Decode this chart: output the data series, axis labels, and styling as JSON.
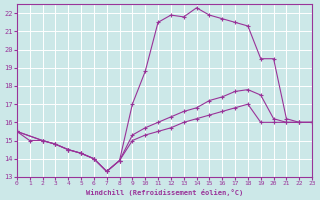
{
  "xlabel": "Windchill (Refroidissement éolien,°C)",
  "xlim": [
    0,
    23
  ],
  "ylim": [
    13,
    22.5
  ],
  "yticks": [
    13,
    14,
    15,
    16,
    17,
    18,
    19,
    20,
    21,
    22
  ],
  "xticks": [
    0,
    1,
    2,
    3,
    4,
    5,
    6,
    7,
    8,
    9,
    10,
    11,
    12,
    13,
    14,
    15,
    16,
    17,
    18,
    19,
    20,
    21,
    22,
    23
  ],
  "bg_color": "#cce8e8",
  "grid_color": "#ffffff",
  "line_color": "#993399",
  "curve1_x": [
    0,
    1,
    2,
    3,
    4,
    5,
    6,
    7,
    8,
    9,
    10,
    11,
    12,
    13,
    14,
    15,
    16,
    17,
    18,
    19,
    20,
    21,
    22,
    23
  ],
  "curve1_y": [
    15.5,
    15.0,
    15.0,
    14.8,
    14.5,
    14.3,
    14.0,
    13.3,
    13.9,
    17.0,
    18.8,
    21.5,
    21.9,
    21.8,
    22.3,
    21.9,
    21.7,
    21.5,
    21.3,
    19.5,
    19.5,
    16.2,
    16.0,
    16.0
  ],
  "curve2_x": [
    0,
    2,
    3,
    4,
    5,
    6,
    7,
    8,
    9,
    10,
    11,
    12,
    13,
    14,
    15,
    16,
    17,
    18,
    19,
    20,
    21,
    22,
    23
  ],
  "curve2_y": [
    15.5,
    15.0,
    14.8,
    14.5,
    14.3,
    14.0,
    13.3,
    13.9,
    15.3,
    15.7,
    16.0,
    16.3,
    16.6,
    16.8,
    17.2,
    17.4,
    17.7,
    17.8,
    17.5,
    16.2,
    16.0,
    16.0,
    16.0
  ],
  "curve3_x": [
    0,
    2,
    3,
    4,
    5,
    6,
    7,
    8,
    9,
    10,
    11,
    12,
    13,
    14,
    15,
    16,
    17,
    18,
    19,
    20,
    21,
    22,
    23
  ],
  "curve3_y": [
    15.5,
    15.0,
    14.8,
    14.5,
    14.3,
    14.0,
    13.3,
    13.9,
    15.0,
    15.3,
    15.5,
    15.7,
    16.0,
    16.2,
    16.4,
    16.6,
    16.8,
    17.0,
    16.0,
    16.0,
    16.0,
    16.0,
    16.0
  ]
}
